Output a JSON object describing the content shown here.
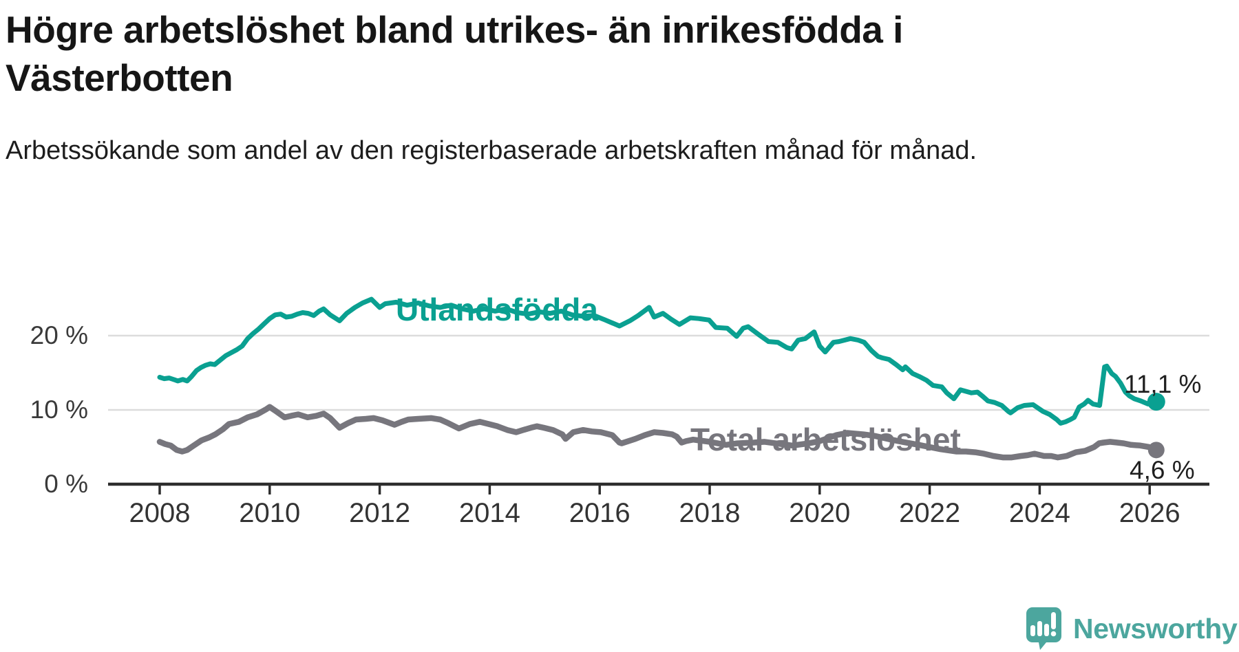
{
  "header": {
    "title": "Högre arbetslöshet bland utrikes- än inrikesfödda i Västerbotten",
    "subtitle": "Arbetssökande som andel av den registerbaserade arbetskraften månad för månad."
  },
  "colors": {
    "foreign_line": "#0aa091",
    "total_line": "#77767d",
    "grid": "#dcdcdc",
    "axis": "#2d2d2d",
    "tick_label": "#3a3a3a",
    "value_label": "#1f1f1f",
    "brand_teal": "#4ca69e"
  },
  "footer": {
    "brand": "Newsworthy",
    "logo_icon": "speech-bubble-bar-chart-icon"
  },
  "chart_data": {
    "type": "line",
    "title": "Högre arbetslöshet bland utrikes- än inrikesfödda i Västerbotten",
    "subtitle": "Arbetssökande som andel av den registerbaserade arbetskraften månad för månad.",
    "grid": "horizontal-only",
    "x_axis": {
      "ticks": [
        2008,
        2010,
        2012,
        2014,
        2016,
        2018,
        2020,
        2022,
        2024,
        2026
      ],
      "range": [
        2007.1,
        2027.1
      ]
    },
    "y_axis": {
      "unit": "%",
      "ticks": [
        0,
        10,
        20
      ],
      "tick_labels": [
        "0 %",
        "10 %",
        "20 %"
      ],
      "range": [
        0,
        27
      ]
    },
    "legend_position": "inline-labels-on-lines",
    "series": [
      {
        "name": "Utlandsfödda",
        "end_label": "11,1 %",
        "end_value": 11.1,
        "points": [
          [
            2008.0,
            14.4
          ],
          [
            2008.08,
            14.2
          ],
          [
            2008.17,
            14.3
          ],
          [
            2008.25,
            14.1
          ],
          [
            2008.33,
            13.9
          ],
          [
            2008.42,
            14.1
          ],
          [
            2008.5,
            13.9
          ],
          [
            2008.58,
            14.5
          ],
          [
            2008.67,
            15.3
          ],
          [
            2008.75,
            15.7
          ],
          [
            2008.83,
            16.0
          ],
          [
            2008.92,
            16.2
          ],
          [
            2009.0,
            16.1
          ],
          [
            2009.1,
            16.7
          ],
          [
            2009.2,
            17.3
          ],
          [
            2009.3,
            17.7
          ],
          [
            2009.4,
            18.1
          ],
          [
            2009.5,
            18.6
          ],
          [
            2009.6,
            19.6
          ],
          [
            2009.7,
            20.3
          ],
          [
            2009.8,
            20.9
          ],
          [
            2009.9,
            21.6
          ],
          [
            2010.0,
            22.3
          ],
          [
            2010.1,
            22.8
          ],
          [
            2010.2,
            22.9
          ],
          [
            2010.3,
            22.5
          ],
          [
            2010.4,
            22.6
          ],
          [
            2010.5,
            22.9
          ],
          [
            2010.6,
            23.1
          ],
          [
            2010.7,
            23.0
          ],
          [
            2010.8,
            22.7
          ],
          [
            2010.9,
            23.3
          ],
          [
            2010.98,
            23.6
          ],
          [
            2011.1,
            22.8
          ],
          [
            2011.27,
            22.0
          ],
          [
            2011.4,
            23.0
          ],
          [
            2011.55,
            23.8
          ],
          [
            2011.69,
            24.4
          ],
          [
            2011.85,
            24.9
          ],
          [
            2012.0,
            23.8
          ],
          [
            2012.1,
            24.3
          ],
          [
            2012.3,
            24.5
          ],
          [
            2012.5,
            24.1
          ],
          [
            2012.7,
            24.4
          ],
          [
            2012.9,
            24.0
          ],
          [
            2013.1,
            23.8
          ],
          [
            2013.3,
            24.1
          ],
          [
            2013.5,
            23.6
          ],
          [
            2013.7,
            23.3
          ],
          [
            2013.9,
            23.6
          ],
          [
            2014.1,
            23.3
          ],
          [
            2014.3,
            23.6
          ],
          [
            2014.5,
            23.1
          ],
          [
            2014.7,
            22.9
          ],
          [
            2014.9,
            23.2
          ],
          [
            2015.1,
            23.0
          ],
          [
            2015.3,
            23.3
          ],
          [
            2015.5,
            22.8
          ],
          [
            2015.7,
            22.6
          ],
          [
            2015.9,
            22.7
          ],
          [
            2016.07,
            22.2
          ],
          [
            2016.2,
            21.8
          ],
          [
            2016.36,
            21.3
          ],
          [
            2016.55,
            22.0
          ],
          [
            2016.7,
            22.7
          ],
          [
            2016.9,
            23.8
          ],
          [
            2016.99,
            22.5
          ],
          [
            2017.15,
            23.0
          ],
          [
            2017.3,
            22.2
          ],
          [
            2017.45,
            21.5
          ],
          [
            2017.65,
            22.4
          ],
          [
            2017.8,
            22.3
          ],
          [
            2017.99,
            22.1
          ],
          [
            2018.11,
            21.1
          ],
          [
            2018.32,
            21.0
          ],
          [
            2018.49,
            19.9
          ],
          [
            2018.61,
            21.0
          ],
          [
            2018.7,
            21.2
          ],
          [
            2018.9,
            20.1
          ],
          [
            2019.07,
            19.2
          ],
          [
            2019.24,
            19.1
          ],
          [
            2019.4,
            18.4
          ],
          [
            2019.49,
            18.2
          ],
          [
            2019.61,
            19.4
          ],
          [
            2019.74,
            19.6
          ],
          [
            2019.9,
            20.5
          ],
          [
            2020.0,
            18.6
          ],
          [
            2020.1,
            17.8
          ],
          [
            2020.25,
            19.1
          ],
          [
            2020.35,
            19.2
          ],
          [
            2020.56,
            19.6
          ],
          [
            2020.7,
            19.4
          ],
          [
            2020.81,
            19.1
          ],
          [
            2020.94,
            18.0
          ],
          [
            2021.06,
            17.2
          ],
          [
            2021.14,
            17.0
          ],
          [
            2021.26,
            16.8
          ],
          [
            2021.39,
            16.1
          ],
          [
            2021.51,
            15.4
          ],
          [
            2021.56,
            15.8
          ],
          [
            2021.69,
            14.9
          ],
          [
            2021.81,
            14.5
          ],
          [
            2021.94,
            14.0
          ],
          [
            2022.06,
            13.3
          ],
          [
            2022.22,
            13.1
          ],
          [
            2022.31,
            12.3
          ],
          [
            2022.44,
            11.5
          ],
          [
            2022.56,
            12.7
          ],
          [
            2022.76,
            12.3
          ],
          [
            2022.87,
            12.4
          ],
          [
            2022.97,
            11.8
          ],
          [
            2023.06,
            11.2
          ],
          [
            2023.18,
            11.0
          ],
          [
            2023.31,
            10.6
          ],
          [
            2023.43,
            9.8
          ],
          [
            2023.47,
            9.6
          ],
          [
            2023.6,
            10.3
          ],
          [
            2023.72,
            10.6
          ],
          [
            2023.88,
            10.7
          ],
          [
            2024.06,
            9.8
          ],
          [
            2024.18,
            9.4
          ],
          [
            2024.31,
            8.7
          ],
          [
            2024.38,
            8.2
          ],
          [
            2024.47,
            8.4
          ],
          [
            2024.56,
            8.7
          ],
          [
            2024.63,
            9.0
          ],
          [
            2024.72,
            10.4
          ],
          [
            2024.81,
            10.8
          ],
          [
            2024.88,
            11.3
          ],
          [
            2024.97,
            10.8
          ],
          [
            2025.09,
            10.6
          ],
          [
            2025.18,
            15.8
          ],
          [
            2025.22,
            15.9
          ],
          [
            2025.31,
            14.9
          ],
          [
            2025.38,
            14.5
          ],
          [
            2025.47,
            13.6
          ],
          [
            2025.56,
            12.4
          ],
          [
            2025.63,
            11.9
          ],
          [
            2025.72,
            11.5
          ],
          [
            2025.84,
            11.2
          ],
          [
            2025.97,
            10.8
          ],
          [
            2026.12,
            11.1
          ]
        ]
      },
      {
        "name": "Total arbetslöshet",
        "end_label": "4,6 %",
        "end_value": 4.6,
        "points": [
          [
            2008.0,
            5.7
          ],
          [
            2008.1,
            5.4
          ],
          [
            2008.2,
            5.2
          ],
          [
            2008.31,
            4.6
          ],
          [
            2008.41,
            4.4
          ],
          [
            2008.5,
            4.6
          ],
          [
            2008.6,
            5.1
          ],
          [
            2008.76,
            5.9
          ],
          [
            2008.9,
            6.3
          ],
          [
            2009.01,
            6.7
          ],
          [
            2009.15,
            7.4
          ],
          [
            2009.26,
            8.1
          ],
          [
            2009.44,
            8.4
          ],
          [
            2009.6,
            9.0
          ],
          [
            2009.77,
            9.4
          ],
          [
            2009.94,
            10.1
          ],
          [
            2010.0,
            10.4
          ],
          [
            2010.1,
            9.9
          ],
          [
            2010.27,
            9.0
          ],
          [
            2010.39,
            9.2
          ],
          [
            2010.52,
            9.4
          ],
          [
            2010.69,
            9.0
          ],
          [
            2010.85,
            9.2
          ],
          [
            2010.98,
            9.5
          ],
          [
            2011.1,
            8.9
          ],
          [
            2011.27,
            7.6
          ],
          [
            2011.42,
            8.2
          ],
          [
            2011.57,
            8.7
          ],
          [
            2011.75,
            8.8
          ],
          [
            2011.89,
            8.9
          ],
          [
            2012.05,
            8.6
          ],
          [
            2012.27,
            8.0
          ],
          [
            2012.4,
            8.4
          ],
          [
            2012.52,
            8.7
          ],
          [
            2012.7,
            8.8
          ],
          [
            2012.94,
            8.9
          ],
          [
            2013.1,
            8.7
          ],
          [
            2013.25,
            8.2
          ],
          [
            2013.44,
            7.5
          ],
          [
            2013.64,
            8.1
          ],
          [
            2013.82,
            8.4
          ],
          [
            2013.98,
            8.1
          ],
          [
            2014.14,
            7.8
          ],
          [
            2014.32,
            7.3
          ],
          [
            2014.48,
            7.0
          ],
          [
            2014.61,
            7.3
          ],
          [
            2014.75,
            7.6
          ],
          [
            2014.86,
            7.8
          ],
          [
            2014.98,
            7.6
          ],
          [
            2015.15,
            7.3
          ],
          [
            2015.32,
            6.7
          ],
          [
            2015.38,
            6.1
          ],
          [
            2015.52,
            7.0
          ],
          [
            2015.7,
            7.3
          ],
          [
            2015.86,
            7.1
          ],
          [
            2016.02,
            7.0
          ],
          [
            2016.23,
            6.6
          ],
          [
            2016.36,
            5.6
          ],
          [
            2016.4,
            5.5
          ],
          [
            2016.65,
            6.1
          ],
          [
            2016.82,
            6.6
          ],
          [
            2016.99,
            7.0
          ],
          [
            2017.15,
            6.9
          ],
          [
            2017.32,
            6.7
          ],
          [
            2017.4,
            6.4
          ],
          [
            2017.49,
            5.6
          ],
          [
            2017.57,
            5.8
          ],
          [
            2017.7,
            6.0
          ],
          [
            2018.0,
            5.7
          ],
          [
            2018.3,
            5.3
          ],
          [
            2018.5,
            5.5
          ],
          [
            2018.8,
            5.6
          ],
          [
            2019.0,
            5.7
          ],
          [
            2019.3,
            5.4
          ],
          [
            2019.5,
            5.2
          ],
          [
            2019.8,
            5.5
          ],
          [
            2020.0,
            5.8
          ],
          [
            2020.3,
            6.6
          ],
          [
            2020.5,
            6.9
          ],
          [
            2020.8,
            6.7
          ],
          [
            2021.0,
            6.5
          ],
          [
            2021.3,
            6.0
          ],
          [
            2021.5,
            5.7
          ],
          [
            2021.8,
            5.3
          ],
          [
            2022.0,
            5.0
          ],
          [
            2022.2,
            4.7
          ],
          [
            2022.49,
            4.4
          ],
          [
            2022.66,
            4.4
          ],
          [
            2022.83,
            4.3
          ],
          [
            2022.99,
            4.1
          ],
          [
            2023.16,
            3.8
          ],
          [
            2023.33,
            3.6
          ],
          [
            2023.49,
            3.6
          ],
          [
            2023.66,
            3.8
          ],
          [
            2023.78,
            3.9
          ],
          [
            2023.91,
            4.1
          ],
          [
            2024.08,
            3.8
          ],
          [
            2024.21,
            3.8
          ],
          [
            2024.33,
            3.6
          ],
          [
            2024.49,
            3.8
          ],
          [
            2024.66,
            4.3
          ],
          [
            2024.83,
            4.5
          ],
          [
            2024.99,
            5.0
          ],
          [
            2025.08,
            5.5
          ],
          [
            2025.16,
            5.6
          ],
          [
            2025.28,
            5.7
          ],
          [
            2025.41,
            5.6
          ],
          [
            2025.53,
            5.5
          ],
          [
            2025.66,
            5.3
          ],
          [
            2025.83,
            5.2
          ],
          [
            2025.99,
            5.0
          ],
          [
            2026.12,
            4.6
          ]
        ]
      }
    ]
  }
}
